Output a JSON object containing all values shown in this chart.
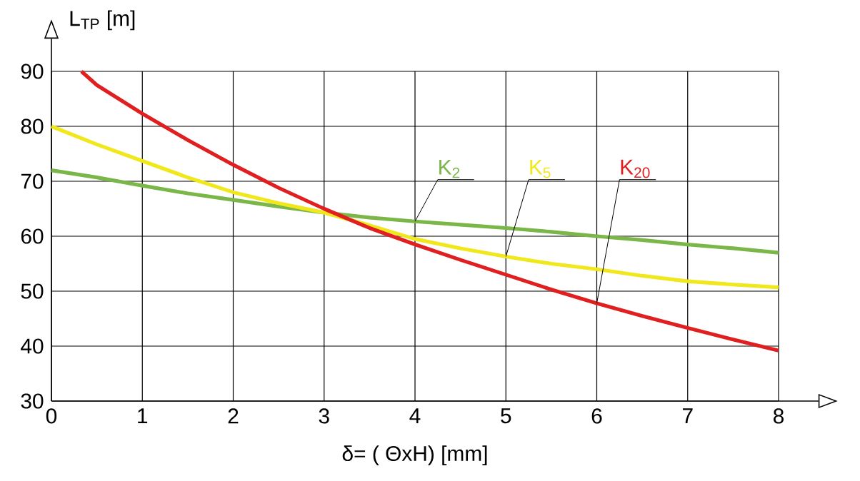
{
  "chart_data": {
    "type": "line",
    "xlabel": "δ= ( ΘxH)   [mm]",
    "ylabel": "L$_{TP}$ [m]",
    "xlim": [
      0,
      8
    ],
    "ylim": [
      30,
      90
    ],
    "xticks": [
      0,
      1,
      2,
      3,
      4,
      5,
      6,
      7,
      8
    ],
    "yticks": [
      30,
      40,
      50,
      60,
      70,
      80,
      90
    ],
    "grid": true,
    "marker": "none",
    "line_style": "solid",
    "series": [
      {
        "name": "K$_{2}$",
        "color": "#7ab648",
        "x": [
          0,
          0.5,
          1,
          1.5,
          2,
          2.5,
          3,
          3.5,
          4,
          4.5,
          5,
          5.5,
          6,
          6.5,
          7,
          7.5,
          8
        ],
        "values": [
          72,
          70.7,
          69.2,
          67.8,
          66.6,
          65.4,
          64.3,
          63.4,
          62.7,
          62.1,
          61.5,
          60.8,
          60,
          59.3,
          58.5,
          57.8,
          57
        ]
      },
      {
        "name": "K$_{5}$",
        "color": "#f0e81c",
        "x": [
          0,
          0.5,
          1,
          1.5,
          2,
          2.5,
          3,
          3.5,
          4,
          4.5,
          5,
          5.5,
          6,
          6.5,
          7,
          7.5,
          8
        ],
        "values": [
          80,
          76.7,
          73.7,
          70.7,
          68,
          66,
          64.3,
          62,
          59.5,
          57.8,
          56.3,
          55,
          54,
          52.8,
          51.8,
          51.2,
          50.7
        ]
      },
      {
        "name": "K$_{20}$",
        "color": "#e02020",
        "x": [
          0.33,
          0.5,
          1,
          1.5,
          2,
          2.5,
          3,
          3.5,
          4,
          4.5,
          5,
          5.5,
          6,
          6.5,
          7,
          7.5,
          8
        ],
        "values": [
          90,
          87.5,
          82.3,
          77.5,
          73,
          68.8,
          65,
          61.5,
          58.5,
          55.7,
          53,
          50.3,
          47.8,
          45.5,
          43.3,
          41.2,
          39.2
        ]
      }
    ]
  }
}
